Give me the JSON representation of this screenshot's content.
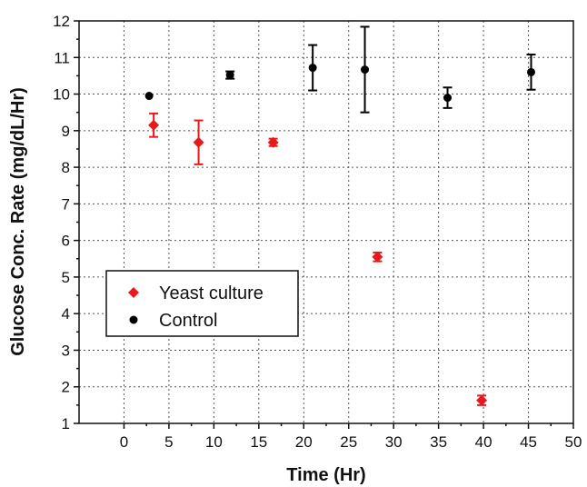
{
  "chart_data": {
    "type": "scatter",
    "xlabel": "Time (Hr)",
    "ylabel": "Glucose Conc. Rate (mg/dL/Hr)",
    "xlim": [
      -5,
      50
    ],
    "ylim": [
      1,
      12
    ],
    "xticks": [
      0,
      5,
      10,
      15,
      20,
      25,
      30,
      35,
      40,
      45,
      50
    ],
    "yticks": [
      1,
      2,
      3,
      4,
      5,
      6,
      7,
      8,
      9,
      10,
      11,
      12
    ],
    "grid": true,
    "legend_position": "lower-left",
    "series": [
      {
        "name": "Yeast culture",
        "marker": "diamond",
        "color": "#e8191b",
        "points": [
          {
            "x": 3.3,
            "y": 9.15,
            "err": 0.32
          },
          {
            "x": 8.3,
            "y": 8.68,
            "err": 0.6
          },
          {
            "x": 16.6,
            "y": 8.68,
            "err": 0.1
          },
          {
            "x": 28.2,
            "y": 5.55,
            "err": 0.12
          },
          {
            "x": 39.8,
            "y": 1.63,
            "err": 0.13
          }
        ]
      },
      {
        "name": "Control",
        "marker": "circle",
        "color": "#000000",
        "points": [
          {
            "x": 2.8,
            "y": 9.95,
            "err": 0
          },
          {
            "x": 11.8,
            "y": 10.52,
            "err": 0.1
          },
          {
            "x": 21.0,
            "y": 10.72,
            "err": 0.62
          },
          {
            "x": 26.8,
            "y": 10.67,
            "err": 1.17
          },
          {
            "x": 36.0,
            "y": 9.9,
            "err": 0.28
          },
          {
            "x": 45.3,
            "y": 10.6,
            "err": 0.48
          }
        ]
      }
    ]
  }
}
